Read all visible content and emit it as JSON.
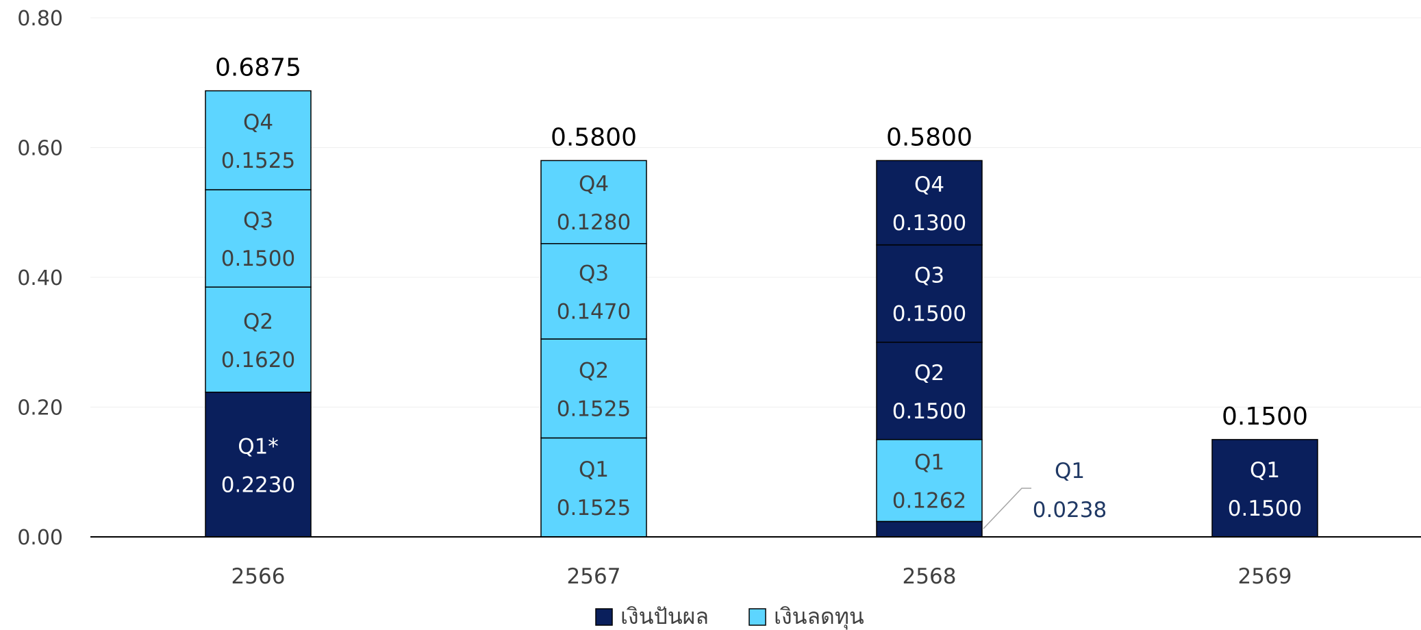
{
  "chart_data": {
    "type": "bar",
    "stacked": true,
    "categories": [
      "2566",
      "2567",
      "2568",
      "2569"
    ],
    "ylim": [
      0,
      0.8
    ],
    "yticks": [
      "0.00",
      "0.20",
      "0.40",
      "0.60",
      "0.80"
    ],
    "grid": true,
    "legend_position": "bottom-center",
    "colors": {
      "dividend": "#0a1f5c",
      "capital_reduction": "#5dd5ff",
      "text_on_dark": "#ffffff",
      "text_on_light": "#404040",
      "callout_text": "#1f3864"
    },
    "series": [
      {
        "name": "เงินปันผล",
        "key": "dividend"
      },
      {
        "name": "เงินลดทุน",
        "key": "capital_reduction"
      }
    ],
    "stacks": [
      {
        "category": "2566",
        "total_label": "0.6875",
        "segments": [
          {
            "series": "dividend",
            "value": 0.223,
            "quarter": "Q1*",
            "label": "0.2230"
          },
          {
            "series": "capital_reduction",
            "value": 0.162,
            "quarter": "Q2",
            "label": "0.1620"
          },
          {
            "series": "capital_reduction",
            "value": 0.15,
            "quarter": "Q3",
            "label": "0.1500"
          },
          {
            "series": "capital_reduction",
            "value": 0.1525,
            "quarter": "Q4",
            "label": "0.1525"
          }
        ]
      },
      {
        "category": "2567",
        "total_label": "0.5800",
        "segments": [
          {
            "series": "capital_reduction",
            "value": 0.1525,
            "quarter": "Q1",
            "label": "0.1525"
          },
          {
            "series": "capital_reduction",
            "value": 0.1525,
            "quarter": "Q2",
            "label": "0.1525"
          },
          {
            "series": "capital_reduction",
            "value": 0.147,
            "quarter": "Q3",
            "label": "0.1470"
          },
          {
            "series": "capital_reduction",
            "value": 0.128,
            "quarter": "Q4",
            "label": "0.1280"
          }
        ]
      },
      {
        "category": "2568",
        "total_label": "0.5800",
        "segments": [
          {
            "series": "dividend",
            "value": 0.0238,
            "quarter": "Q1",
            "label": "0.0238",
            "callout": true
          },
          {
            "series": "capital_reduction",
            "value": 0.1262,
            "quarter": "Q1",
            "label": "0.1262"
          },
          {
            "series": "dividend",
            "value": 0.15,
            "quarter": "Q2",
            "label": "0.1500"
          },
          {
            "series": "dividend",
            "value": 0.15,
            "quarter": "Q3",
            "label": "0.1500"
          },
          {
            "series": "dividend",
            "value": 0.13,
            "quarter": "Q4",
            "label": "0.1300"
          }
        ]
      },
      {
        "category": "2569",
        "total_label": "0.1500",
        "segments": [
          {
            "series": "dividend",
            "value": 0.15,
            "quarter": "Q1",
            "label": "0.1500"
          }
        ]
      }
    ]
  }
}
